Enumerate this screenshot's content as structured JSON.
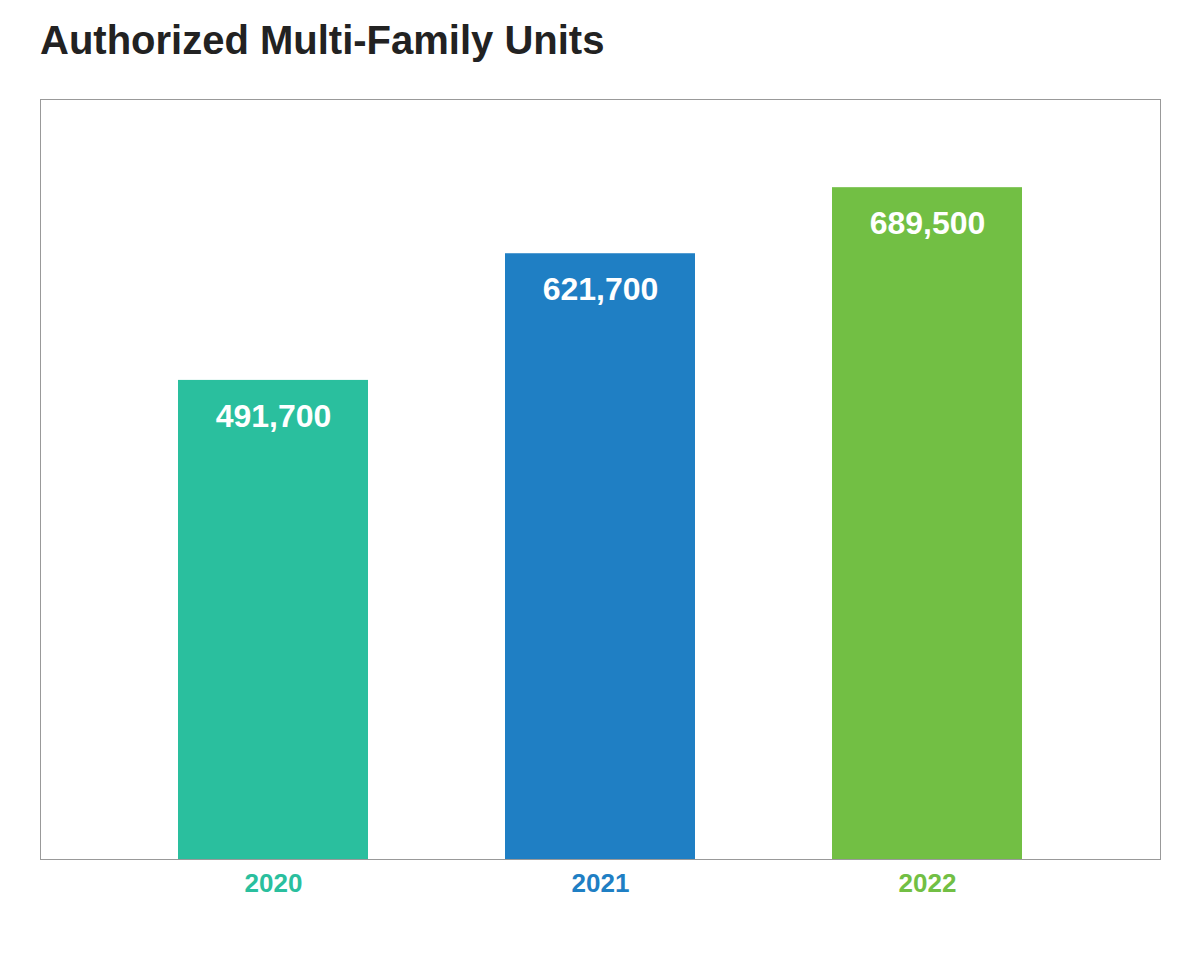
{
  "chart_data": {
    "type": "bar",
    "title": "Authorized Multi-Family Units",
    "categories": [
      "2020",
      "2021",
      "2022"
    ],
    "values": [
      491700,
      621700,
      689500
    ],
    "value_labels": [
      "491,700",
      "621,700",
      "689,500"
    ],
    "colors": [
      "#2abf9e",
      "#1f7fc4",
      "#72bf44"
    ],
    "ylim": [
      0,
      780000
    ],
    "data_labels": true,
    "tick_labels": "x"
  }
}
